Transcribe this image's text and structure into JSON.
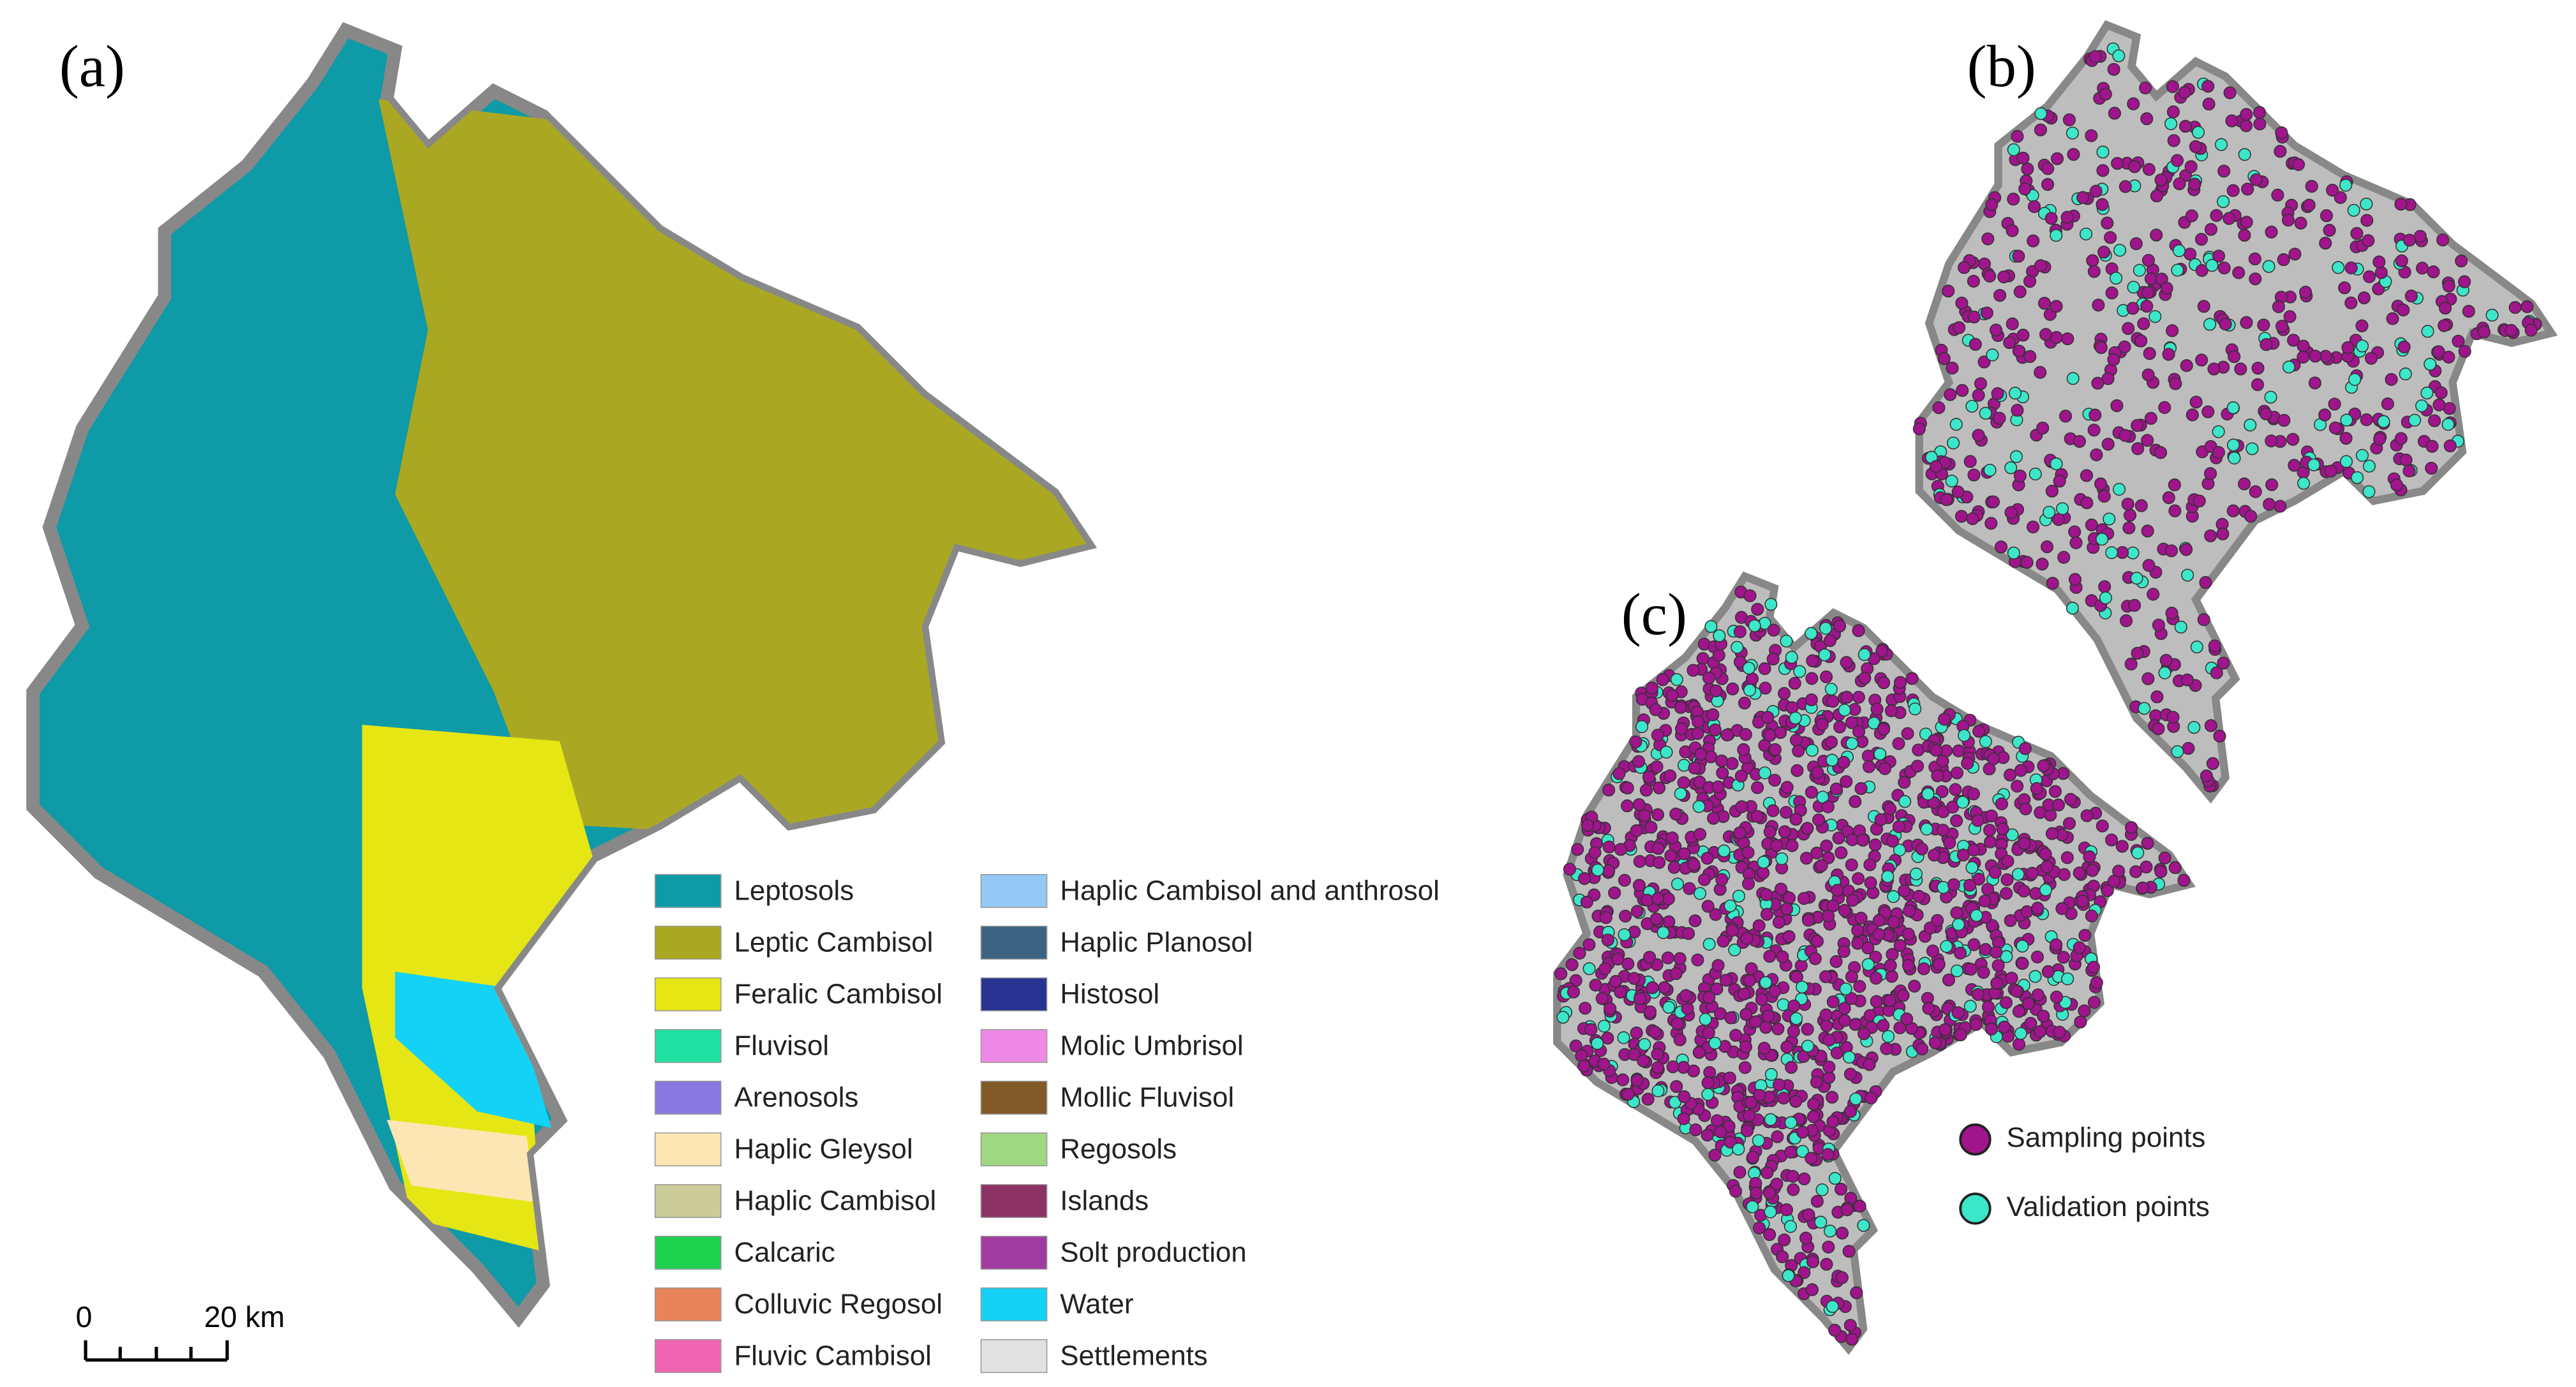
{
  "panels": {
    "a": "(a)",
    "b": "(b)",
    "c": "(c)"
  },
  "legend": [
    {
      "label": "Leptosols",
      "color": "#0e9aa7"
    },
    {
      "label": "Leptic Cambisol",
      "color": "#aaa822"
    },
    {
      "label": "Feralic Cambisol",
      "color": "#e6e614"
    },
    {
      "label": "Fluvisol",
      "color": "#1ee0a0"
    },
    {
      "label": "Arenosols",
      "color": "#8878e0"
    },
    {
      "label": "Haplic Gleysol",
      "color": "#fce6b4"
    },
    {
      "label": "Haplic Cambisol",
      "color": "#cccc99"
    },
    {
      "label": "Calcaric",
      "color": "#1ed250"
    },
    {
      "label": "Colluvic Regosol",
      "color": "#e8845c"
    },
    {
      "label": "Fluvic Cambisol",
      "color": "#f064b4"
    },
    {
      "label": "Haplic Cambisol and anthrosol",
      "color": "#96c8f5"
    },
    {
      "label": "Haplic Planosol",
      "color": "#3c6482"
    },
    {
      "label": "Histosol",
      "color": "#283291"
    },
    {
      "label": "Molic Umbrisol",
      "color": "#ee88e6"
    },
    {
      "label": "Mollic Fluvisol",
      "color": "#825a28"
    },
    {
      "label": "Regosols",
      "color": "#a0d882"
    },
    {
      "label": "Islands",
      "color": "#8c3264"
    },
    {
      "label": "Solt production",
      "color": "#a03ca0"
    },
    {
      "label": "Water",
      "color": "#14d2f5"
    },
    {
      "label": "Settlements",
      "color": "#e1e1e1"
    }
  ],
  "scale_bar": {
    "start": "0",
    "end": "20 km"
  },
  "point_legend": [
    {
      "label": "Sampling points",
      "color": "#a0148c"
    },
    {
      "label": "Validation points",
      "color": "#3ce6c8"
    }
  ]
}
